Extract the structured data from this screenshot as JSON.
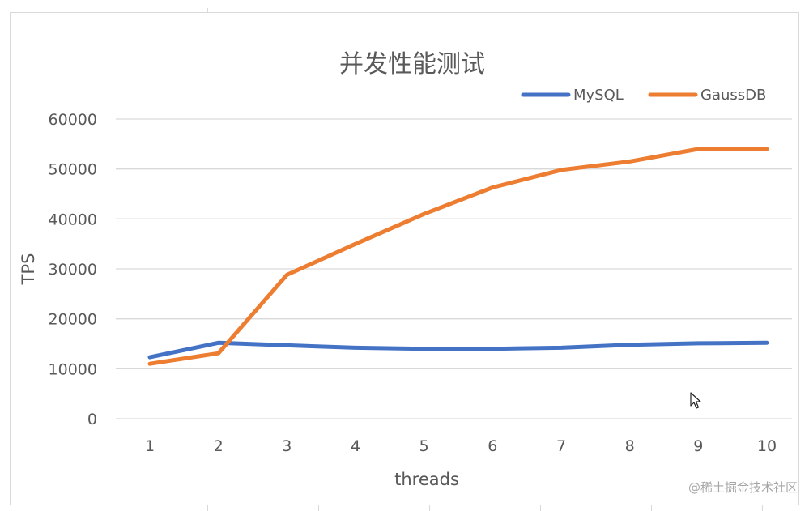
{
  "chart_data": {
    "type": "line",
    "title": "并发性能测试",
    "xlabel": "threads",
    "ylabel": "TPS",
    "categories": [
      "1",
      "2",
      "3",
      "4",
      "5",
      "6",
      "7",
      "8",
      "9",
      "10"
    ],
    "series": [
      {
        "name": "MySQL",
        "color": "#4472c4",
        "values": [
          12300,
          15200,
          14700,
          14200,
          14000,
          14000,
          14200,
          14800,
          15100,
          15200
        ]
      },
      {
        "name": "GaussDB",
        "color": "#ed7d31",
        "values": [
          11000,
          13100,
          28800,
          35000,
          41000,
          46300,
          49800,
          51500,
          54000,
          54000
        ]
      }
    ],
    "ylim": [
      0,
      60000
    ],
    "yticks": [
      "0",
      "10000",
      "20000",
      "30000",
      "40000",
      "50000",
      "60000"
    ],
    "grid": true,
    "legend_position": "top-right"
  },
  "watermark": "@稀土掘金技术社区",
  "colors": {
    "gridline": "#d9d9d9",
    "text": "#595959",
    "border": "#d9d9d9"
  }
}
